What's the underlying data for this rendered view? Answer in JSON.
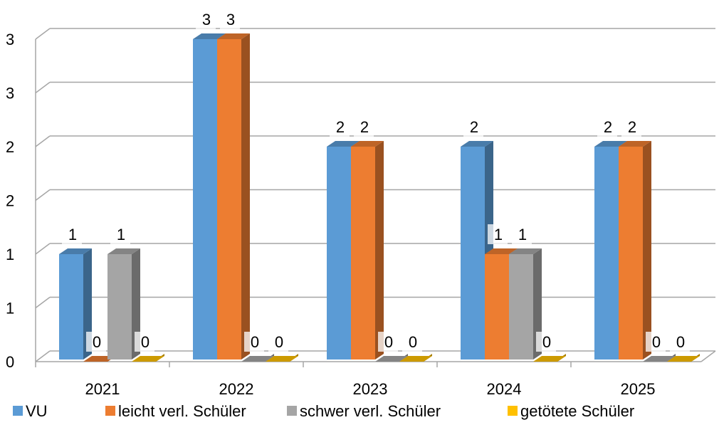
{
  "chart_data": {
    "type": "bar3d",
    "categories": [
      "2021",
      "2022",
      "2023",
      "2024",
      "2025"
    ],
    "series": [
      {
        "name": "VU",
        "color": "#5b9bd5",
        "values": [
          1,
          3,
          2,
          2,
          2
        ]
      },
      {
        "name": "leicht verl. Schüler",
        "color": "#ed7d31",
        "values": [
          0,
          3,
          2,
          1,
          2
        ]
      },
      {
        "name": "schwer verl. Schüler",
        "color": "#a5a5a5",
        "values": [
          1,
          0,
          0,
          1,
          0
        ]
      },
      {
        "name": "getötete Schüler",
        "color": "#ffc000",
        "values": [
          0,
          0,
          0,
          0,
          0
        ]
      }
    ],
    "ylim": [
      0,
      3
    ],
    "yticks": [
      0,
      {
        "value": 0.5,
        "label": "1"
      },
      1,
      {
        "value": 1.5,
        "label": "2"
      },
      2,
      {
        "value": 2.5,
        "label": "3"
      },
      3
    ],
    "grid": true,
    "legend": "bottom"
  }
}
